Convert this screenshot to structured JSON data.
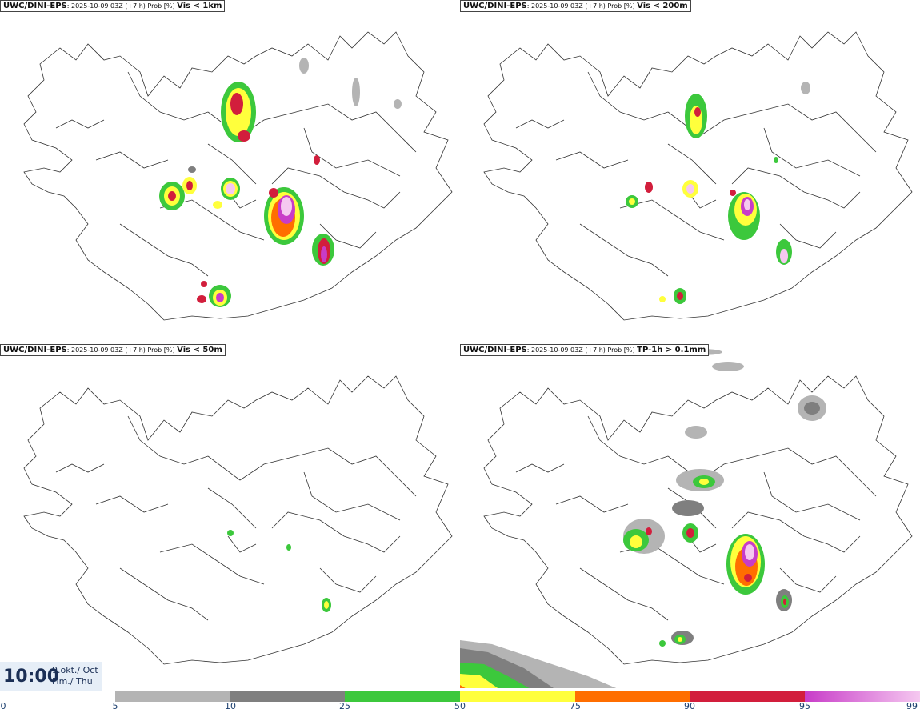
{
  "panels": [
    {
      "source": "UWC/DINI-EPS",
      "meta": ": 2025-10-09 03Z (+7 h) Prob [%] ",
      "variable": "Vis < 1km"
    },
    {
      "source": "UWC/DINI-EPS",
      "meta": ": 2025-10-09 03Z (+7 h) Prob [%] ",
      "variable": "Vis < 200m"
    },
    {
      "source": "UWC/DINI-EPS",
      "meta": ": 2025-10-09 03Z (+7 h) Prob [%] ",
      "variable": "Vis < 50m"
    },
    {
      "source": "UWC/DINI-EPS",
      "meta": ": 2025-10-09 03Z (+7 h) Prob [%] ",
      "variable": "TP-1h > 0.1mm"
    }
  ],
  "valid_time": {
    "time": "10:00",
    "date_line1": "9.okt./ Oct",
    "date_line2": "Fim./ Thu"
  },
  "legend": {
    "ticks": [
      "0",
      "5",
      "10",
      "25",
      "50",
      "75",
      "90",
      "95",
      "99"
    ],
    "colors": {
      "c5_10": "#b4b4b4",
      "c10_25": "#7f7f7f",
      "c25_50": "#3cc83c",
      "c50_75": "#ffff3c",
      "c75_90": "#ff6e00",
      "c90_95": "#d21e3c",
      "c95_99a": "#c83cc8",
      "c95_99b": "#f5c8f0"
    }
  }
}
